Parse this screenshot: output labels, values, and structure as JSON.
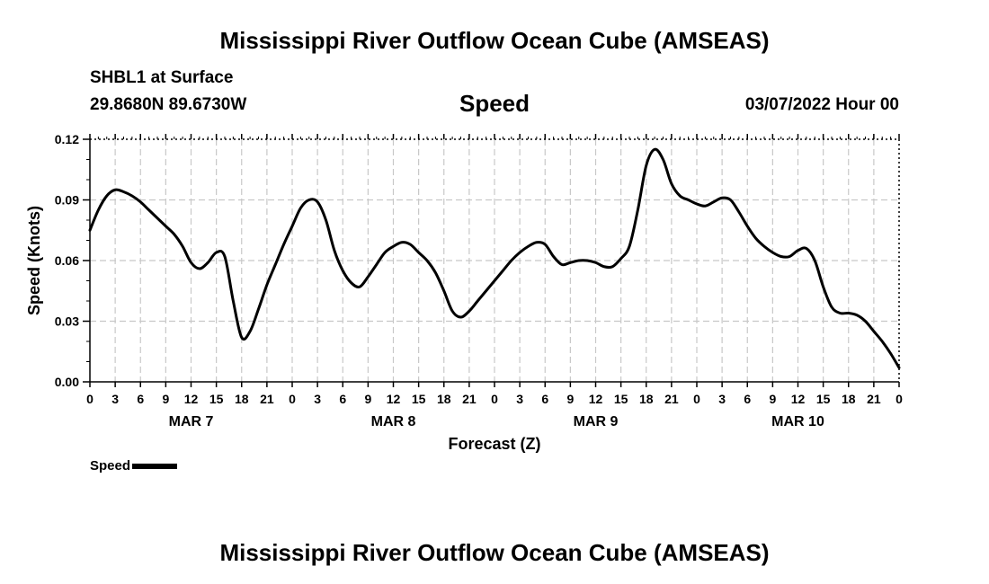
{
  "header": {
    "title": "Mississippi River Outflow Ocean Cube (AMSEAS)",
    "station": "SHBL1 at Surface",
    "coords": "29.8680N  89.6730W",
    "variable": "Speed",
    "datetime": "03/07/2022 Hour 00"
  },
  "footer": {
    "title": "Mississippi River Outflow Ocean Cube (AMSEAS)"
  },
  "legend": {
    "label": "Speed",
    "color": "#000000"
  },
  "chart_data": {
    "type": "line",
    "title": "Speed",
    "xlabel": "Forecast (Z)",
    "ylabel": "Speed (Knots)",
    "xlim": [
      0,
      96
    ],
    "ylim": [
      0,
      0.12
    ],
    "grid": true,
    "yticks": [
      0,
      0.03,
      0.06,
      0.09,
      0.12
    ],
    "ytick_labels": [
      "0.00",
      "0.03",
      "0.06",
      "0.09",
      "0.12"
    ],
    "xticks": [
      0,
      3,
      6,
      9,
      12,
      15,
      18,
      21,
      24,
      27,
      30,
      33,
      36,
      39,
      42,
      45,
      48,
      51,
      54,
      57,
      60,
      63,
      66,
      69,
      72,
      75,
      78,
      81,
      84,
      87,
      90,
      93,
      96
    ],
    "xtick_labels": [
      "0",
      "3",
      "6",
      "9",
      "12",
      "15",
      "18",
      "21",
      "0",
      "3",
      "6",
      "9",
      "12",
      "15",
      "18",
      "21",
      "0",
      "3",
      "6",
      "9",
      "12",
      "15",
      "18",
      "21",
      "0",
      "3",
      "6",
      "9",
      "12",
      "15",
      "18",
      "21",
      "0"
    ],
    "day_labels": [
      {
        "x": 12,
        "label": "MAR 7"
      },
      {
        "x": 36,
        "label": "MAR 8"
      },
      {
        "x": 60,
        "label": "MAR 9"
      },
      {
        "x": 84,
        "label": "MAR 10"
      }
    ],
    "series": [
      {
        "name": "Speed",
        "x": [
          0,
          1,
          2,
          3,
          4,
          5,
          6,
          7,
          8,
          9,
          10,
          11,
          12,
          13,
          14,
          15,
          16,
          17,
          18,
          19,
          20,
          21,
          22,
          23,
          24,
          25,
          26,
          27,
          28,
          29,
          30,
          31,
          32,
          33,
          34,
          35,
          36,
          37,
          38,
          39,
          40,
          41,
          42,
          43,
          44,
          45,
          46,
          47,
          48,
          49,
          50,
          51,
          52,
          53,
          54,
          55,
          56,
          57,
          58,
          59,
          60,
          61,
          62,
          63,
          64,
          65,
          66,
          67,
          68,
          69,
          70,
          71,
          72,
          73,
          74,
          75,
          76,
          77,
          78,
          79,
          80,
          81,
          82,
          83,
          84,
          85,
          86,
          87,
          88,
          89,
          90,
          91,
          92,
          93,
          94,
          95,
          96
        ],
        "values": [
          0.075,
          0.085,
          0.092,
          0.095,
          0.094,
          0.092,
          0.089,
          0.085,
          0.081,
          0.077,
          0.073,
          0.067,
          0.059,
          0.056,
          0.059,
          0.064,
          0.062,
          0.04,
          0.022,
          0.025,
          0.036,
          0.048,
          0.058,
          0.068,
          0.077,
          0.086,
          0.09,
          0.089,
          0.08,
          0.065,
          0.055,
          0.049,
          0.047,
          0.052,
          0.058,
          0.064,
          0.067,
          0.069,
          0.068,
          0.064,
          0.06,
          0.054,
          0.045,
          0.035,
          0.032,
          0.035,
          0.04,
          0.045,
          0.05,
          0.055,
          0.06,
          0.064,
          0.067,
          0.069,
          0.068,
          0.062,
          0.058,
          0.059,
          0.06,
          0.06,
          0.059,
          0.057,
          0.057,
          0.061,
          0.067,
          0.085,
          0.107,
          0.115,
          0.11,
          0.098,
          0.092,
          0.09,
          0.088,
          0.087,
          0.089,
          0.091,
          0.09,
          0.084,
          0.077,
          0.071,
          0.067,
          0.064,
          0.062,
          0.062,
          0.065,
          0.066,
          0.06,
          0.047,
          0.037,
          0.034,
          0.034,
          0.033,
          0.03,
          0.025,
          0.02,
          0.014,
          0.007
        ]
      }
    ]
  }
}
